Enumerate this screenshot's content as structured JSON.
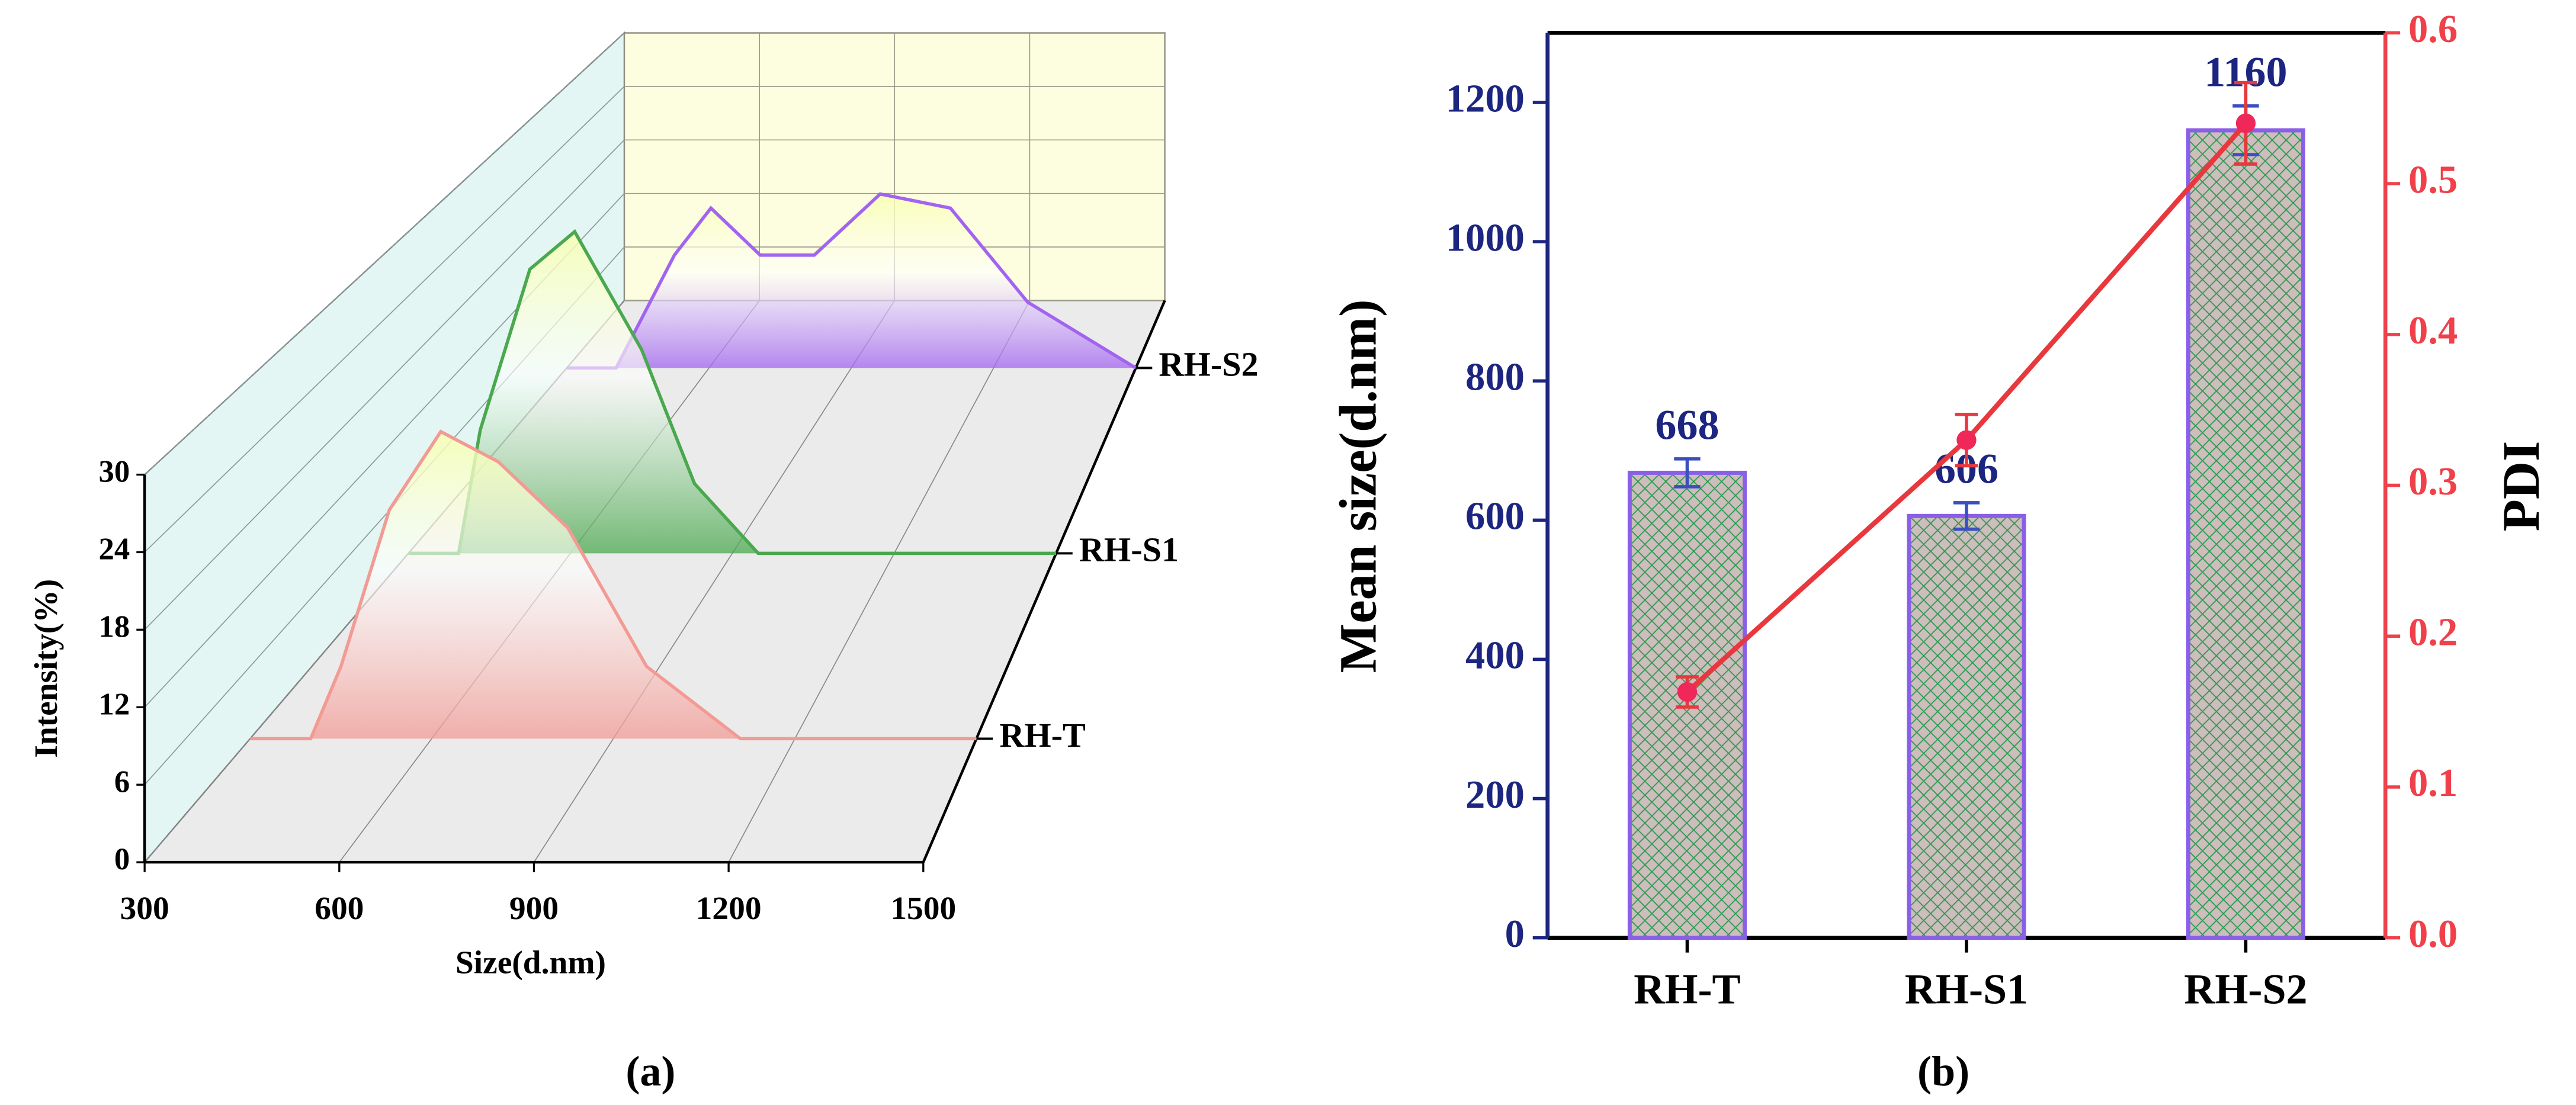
{
  "chart_data": [
    {
      "type": "waterfall",
      "xlabel": "Size(d.nm)",
      "ylabel": "Intensity(%)",
      "caption": "(a)",
      "xlim": [
        300,
        1500
      ],
      "xticks": [
        300,
        600,
        900,
        1200,
        1500
      ],
      "ylim": [
        0,
        30
      ],
      "yticks": [
        0,
        6,
        12,
        18,
        24,
        30
      ],
      "grid": true,
      "series": [
        {
          "name": "RH-T",
          "color": "#f29a94",
          "x": [
            300,
            400,
            450,
            530,
            615,
            710,
            825,
            955,
            1110,
            1500
          ],
          "values": [
            0,
            0,
            6,
            19,
            25.5,
            23,
            17.5,
            6,
            0,
            0
          ]
        },
        {
          "name": "RH-S1",
          "color": "#4aa84e",
          "x": [
            300,
            393,
            433,
            525,
            608,
            732,
            830,
            948,
            1500
          ],
          "values": [
            0,
            0,
            11.5,
            26.5,
            30,
            19,
            6.5,
            0,
            0
          ]
        },
        {
          "name": "RH-S2",
          "color": "#a264f0",
          "x": [
            300,
            404,
            527,
            604,
            708,
            822,
            961,
            1109,
            1272,
            1500
          ],
          "values": [
            0,
            0,
            12,
            17,
            12,
            12,
            18.5,
            17,
            7,
            0
          ]
        }
      ]
    },
    {
      "type": "bar",
      "ylabel": "Mean size(d.nm)",
      "y2label": "PDI",
      "caption": "(b)",
      "categories": [
        "RH-T",
        "RH-S1",
        "RH-S2"
      ],
      "ylim": [
        0,
        1300
      ],
      "yticks": [
        0,
        200,
        400,
        600,
        800,
        1000,
        1200
      ],
      "y2lim": [
        0,
        0.6
      ],
      "y2ticks": [
        {
          "value": 0,
          "label": "0.0"
        },
        0.1,
        0.2,
        0.3,
        0.4,
        0.5,
        0.6
      ],
      "axis_color": "#1c2580",
      "axis2_color": "#f0404a",
      "series": [
        {
          "color": "#8a5fe8",
          "values": [
            668,
            606,
            1160
          ],
          "errors": [
            20,
            19,
            35
          ]
        },
        {
          "axis": "y2",
          "color": "#e8383d",
          "values": [
            0.163,
            0.33,
            0.54
          ],
          "errors": [
            0.01,
            0.017,
            0.027
          ]
        }
      ]
    }
  ]
}
